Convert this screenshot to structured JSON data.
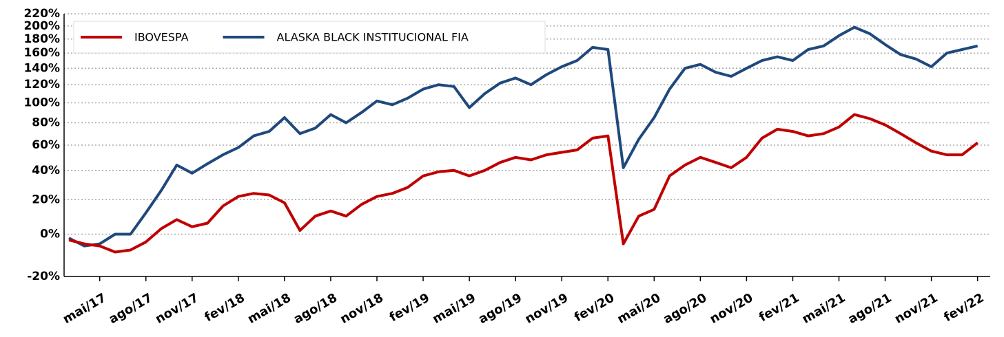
{
  "chart_data": {
    "type": "line",
    "x": [
      "2017-03",
      "2017-04",
      "2017-05",
      "2017-06",
      "2017-07",
      "2017-08",
      "2017-09",
      "2017-10",
      "2017-11",
      "2017-12",
      "2018-01",
      "2018-02",
      "2018-03",
      "2018-04",
      "2018-05",
      "2018-06",
      "2018-07",
      "2018-08",
      "2018-09",
      "2018-10",
      "2018-11",
      "2018-12",
      "2019-01",
      "2019-02",
      "2019-03",
      "2019-04",
      "2019-05",
      "2019-06",
      "2019-07",
      "2019-08",
      "2019-09",
      "2019-10",
      "2019-11",
      "2019-12",
      "2020-01",
      "2020-02",
      "2020-03",
      "2020-04",
      "2020-05",
      "2020-06",
      "2020-07",
      "2020-08",
      "2020-09",
      "2020-10",
      "2020-11",
      "2020-12",
      "2021-01",
      "2021-02",
      "2021-03",
      "2021-04",
      "2021-05",
      "2021-06",
      "2021-07",
      "2021-08",
      "2021-09",
      "2021-10",
      "2021-11",
      "2021-12",
      "2022-01",
      "2022-02"
    ],
    "series": [
      {
        "name": "IBOVESPA",
        "color": "#c00000",
        "values": [
          -3,
          -5,
          -6,
          -9,
          -8,
          -4,
          3,
          8,
          4,
          6,
          16,
          22,
          24,
          23,
          18,
          2,
          10,
          13,
          10,
          17,
          22,
          24,
          28,
          36,
          39,
          40,
          36,
          40,
          46,
          50,
          48,
          52,
          54,
          56,
          66,
          68,
          -5,
          10,
          14,
          36,
          44,
          50,
          46,
          42,
          50,
          66,
          74,
          72,
          68,
          70,
          76,
          88,
          84,
          78,
          70,
          62,
          55,
          52,
          52,
          62
        ]
      },
      {
        "name": "ALASKA BLACK INSTITUCIONAL FIA",
        "color": "#1f497d",
        "values": [
          -2,
          -6,
          -5,
          0,
          0,
          12,
          26,
          44,
          38,
          45,
          52,
          58,
          68,
          72,
          85,
          70,
          75,
          88,
          80,
          90,
          102,
          98,
          105,
          115,
          120,
          118,
          95,
          110,
          122,
          128,
          120,
          132,
          142,
          150,
          168,
          165,
          42,
          65,
          85,
          115,
          140,
          145,
          135,
          130,
          140,
          150,
          155,
          150,
          165,
          170,
          185,
          198,
          188,
          172,
          158,
          152,
          142,
          160,
          165,
          170
        ]
      }
    ],
    "ylim": [
      -20,
      220
    ],
    "yticks": [
      {
        "value": -20,
        "label": "-20%"
      },
      {
        "value": 0,
        "label": "0%"
      },
      {
        "value": 20,
        "label": "20%"
      },
      {
        "value": 40,
        "label": "40%"
      },
      {
        "value": 60,
        "label": "60%"
      },
      {
        "value": 80,
        "label": "80%"
      },
      {
        "value": 100,
        "label": "100%"
      },
      {
        "value": 120,
        "label": "120%"
      },
      {
        "value": 140,
        "label": "140%"
      },
      {
        "value": 160,
        "label": "160%"
      },
      {
        "value": 180,
        "label": "180%"
      },
      {
        "value": 200,
        "label": "200%"
      },
      {
        "value": 220,
        "label": "220%"
      }
    ],
    "xticks": [
      {
        "value": "2017-05",
        "label": "mai/17"
      },
      {
        "value": "2017-08",
        "label": "ago/17"
      },
      {
        "value": "2017-11",
        "label": "nov/17"
      },
      {
        "value": "2018-02",
        "label": "fev/18"
      },
      {
        "value": "2018-05",
        "label": "mai/18"
      },
      {
        "value": "2018-08",
        "label": "ago/18"
      },
      {
        "value": "2018-11",
        "label": "nov/18"
      },
      {
        "value": "2019-02",
        "label": "fev/19"
      },
      {
        "value": "2019-05",
        "label": "mai/19"
      },
      {
        "value": "2019-08",
        "label": "ago/19"
      },
      {
        "value": "2019-11",
        "label": "nov/19"
      },
      {
        "value": "2020-02",
        "label": "fev/20"
      },
      {
        "value": "2020-05",
        "label": "mai/20"
      },
      {
        "value": "2020-08",
        "label": "ago/20"
      },
      {
        "value": "2020-11",
        "label": "nov/20"
      },
      {
        "value": "2021-02",
        "label": "fev/21"
      },
      {
        "value": "2021-05",
        "label": "mai/21"
      },
      {
        "value": "2021-08",
        "label": "ago/21"
      },
      {
        "value": "2021-11",
        "label": "nov/21"
      },
      {
        "value": "2022-02",
        "label": "fev/22"
      }
    ],
    "y_scale": "log",
    "grid": true,
    "legend": "top-left"
  }
}
